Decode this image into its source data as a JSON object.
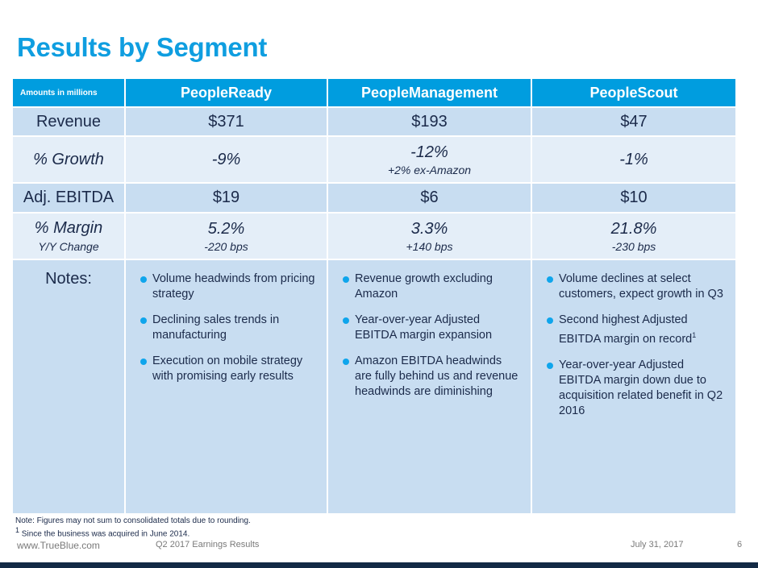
{
  "title": "Results by Segment",
  "table": {
    "corner_label": "Amounts in millions",
    "columns": [
      "PeopleReady",
      "PeopleManagement",
      "PeopleScout"
    ],
    "rows": {
      "revenue": {
        "label": "Revenue",
        "values": [
          "$371",
          "$193",
          "$47"
        ]
      },
      "growth": {
        "label": "% Growth",
        "values": [
          "-9%",
          "-12%",
          "-1%"
        ],
        "subs": [
          "",
          "+2% ex-Amazon",
          ""
        ]
      },
      "ebitda": {
        "label": "Adj. EBITDA",
        "values": [
          "$19",
          "$6",
          "$10"
        ]
      },
      "margin": {
        "label": "% Margin",
        "sublabel": "Y/Y Change",
        "values": [
          "5.2%",
          "3.3%",
          "21.8%"
        ],
        "subs": [
          "-220 bps",
          "+140 bps",
          "-230 bps"
        ]
      },
      "notes": {
        "label": "Notes:",
        "columns": [
          [
            "Volume headwinds from pricing strategy",
            "Declining sales trends in manufacturing",
            "Execution on mobile strategy with promising early results"
          ],
          [
            "Revenue growth excluding Amazon",
            "Year-over-year Adjusted EBITDA margin expansion",
            "Amazon EBITDA headwinds are fully behind us and revenue headwinds are diminishing"
          ],
          [
            "Volume declines at select customers, expect growth in Q3",
            "Second highest Adjusted EBITDA margin on record",
            "Year-over-year Adjusted EBITDA margin down due to acquisition related benefit in Q2 2016"
          ]
        ],
        "superscript": "1"
      }
    }
  },
  "footnotes": {
    "note": "Note: Figures may not sum to consolidated totals due to rounding.",
    "marker": "1",
    "text": "Since the business was acquired in June 2014."
  },
  "footer": {
    "url": "www.TrueBlue.com",
    "doc": "Q2 2017 Earnings Results",
    "date": "July 31, 2017",
    "page": "6"
  },
  "colors": {
    "accent": "#009ddf",
    "title": "#0f9ee0",
    "row_dark": "#c8ddf1",
    "row_light": "#e4eef8",
    "navy": "#132a45"
  }
}
